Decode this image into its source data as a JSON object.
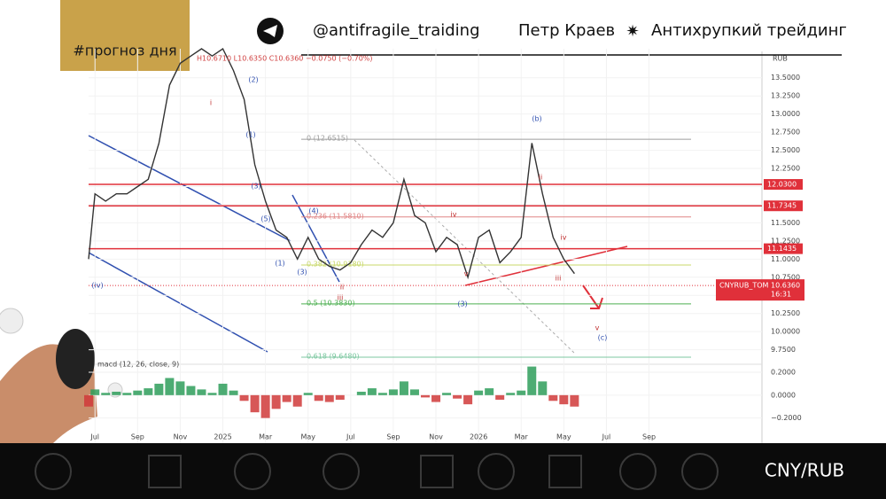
{
  "header": {
    "tag": "#прогноз дня",
    "channel": "@antifragile_traiding",
    "author": "Петр Краев",
    "brand": "Антихрупкий трейдинг"
  },
  "footer": {
    "pair": "CNY/RUB"
  },
  "chart_data": {
    "type": "line",
    "ohlc_legend": "H10.6710 L10.6350 C10.6360 −0.0750 (−0.70%)",
    "y_axis_label": "RUB",
    "xlim": [
      0.7,
      32.3
    ],
    "ylim": [
      9.55,
      13.9
    ],
    "xticks": [
      {
        "value": 1,
        "label": "Jul"
      },
      {
        "value": 3,
        "label": "Sep"
      },
      {
        "value": 5,
        "label": "Nov"
      },
      {
        "value": 7,
        "label": "2025"
      },
      {
        "value": 9,
        "label": "Mar"
      },
      {
        "value": 11,
        "label": "May"
      },
      {
        "value": 13,
        "label": "Jul"
      },
      {
        "value": 15,
        "label": "Sep"
      },
      {
        "value": 17,
        "label": "Nov"
      },
      {
        "value": 19,
        "label": "2026"
      },
      {
        "value": 21,
        "label": "Mar"
      },
      {
        "value": 23,
        "label": "May"
      },
      {
        "value": 25,
        "label": "Jul"
      },
      {
        "value": 27,
        "label": "Sep"
      }
    ],
    "yticks": [
      {
        "value": 9.75,
        "label": "9.7500"
      },
      {
        "value": 10,
        "label": "10.0000"
      },
      {
        "value": 10.25,
        "label": "10.2500"
      },
      {
        "value": 10.5,
        "label": "10.5000"
      },
      {
        "value": 10.75,
        "label": "10.7500"
      },
      {
        "value": 11,
        "label": "11.0000"
      },
      {
        "value": 11.25,
        "label": "11.2500"
      },
      {
        "value": 11.5,
        "label": "11.5000"
      },
      {
        "value": 11.75,
        "label": "11.7500"
      },
      {
        "value": 12,
        "label": "12.0000"
      },
      {
        "value": 12.25,
        "label": "12.2500"
      },
      {
        "value": 12.5,
        "label": "12.5000"
      },
      {
        "value": 12.75,
        "label": "12.7500"
      },
      {
        "value": 13,
        "label": "13.0000"
      },
      {
        "value": 13.25,
        "label": "13.2500"
      },
      {
        "value": 13.5,
        "label": "13.5000"
      }
    ],
    "x": [
      0.7,
      1,
      1.5,
      2,
      2.5,
      3,
      3.5,
      4,
      4.5,
      5,
      5.5,
      6,
      6.5,
      7,
      7.5,
      8,
      8.5,
      9,
      9.5,
      10,
      10.5,
      11,
      11.5,
      12,
      12.5,
      13,
      13.5,
      14,
      14.5,
      15,
      15.5,
      16,
      16.5,
      17,
      17.5,
      18,
      18.5,
      19,
      19.5,
      20,
      20.5,
      21,
      21.5,
      22,
      22.5,
      23,
      23.5
    ],
    "series": [
      {
        "name": "CNYRUB_TOM",
        "color": "#333333",
        "values": [
          11.0,
          11.9,
          11.8,
          11.9,
          11.9,
          12.0,
          12.1,
          12.6,
          13.4,
          13.7,
          13.8,
          13.9,
          13.8,
          13.9,
          13.6,
          13.2,
          12.3,
          11.8,
          11.4,
          11.3,
          11.0,
          11.3,
          11.0,
          10.9,
          10.85,
          10.95,
          11.2,
          11.4,
          11.3,
          11.5,
          12.1,
          11.6,
          11.5,
          11.1,
          11.3,
          11.2,
          10.75,
          11.3,
          11.4,
          10.95,
          11.1,
          11.3,
          12.6,
          11.9,
          11.3,
          11.0,
          10.8
        ]
      }
    ],
    "last_price": {
      "value": 10.636,
      "label": "10.6360",
      "time": "16:31"
    },
    "levels": [
      {
        "value": 12.03,
        "label": "12.0300",
        "color": "#e0303a"
      },
      {
        "value": 11.7345,
        "label": "11.7345",
        "color": "#e0303a"
      },
      {
        "value": 11.1435,
        "label": "11.1435",
        "color": "#e0303a"
      }
    ],
    "fib": [
      {
        "value": 12.6515,
        "label": "0 (12.6515)",
        "color": "#9e9e9e"
      },
      {
        "value": 11.581,
        "label": "0.236 (11.5810)",
        "color": "#e08585"
      },
      {
        "value": 10.918,
        "label": "0.382 (10.9180)",
        "color": "#c8d86a"
      },
      {
        "value": 10.383,
        "label": "0.5 (10.3830)",
        "color": "#4caf50"
      },
      {
        "value": 9.648,
        "label": "0.618 (9.6480)",
        "color": "#7cc7a0"
      }
    ],
    "waves": [
      "i",
      "(2)",
      "(1)",
      "(3)",
      "(4)",
      "(5)",
      "(b)",
      "ii",
      "iv",
      "iii",
      "v",
      "(c)",
      "(iv)",
      "(1)",
      "(3)",
      "iii",
      "iv",
      "(3)",
      "v",
      "ii"
    ],
    "macd": {
      "name": "macd (12, 26, close, 9)",
      "ylim": [
        -0.42,
        0.27
      ],
      "yticks": [
        {
          "value": 0.2,
          "label": "0.2000"
        },
        {
          "value": 0,
          "label": "0.0000"
        },
        {
          "value": -0.2,
          "label": "−0.2000"
        }
      ],
      "values": [
        -0.1,
        0.05,
        0.02,
        0.03,
        0.02,
        0.04,
        0.06,
        0.1,
        0.15,
        0.12,
        0.08,
        0.05,
        0.02,
        0.1,
        0.04,
        -0.05,
        -0.15,
        -0.2,
        -0.12,
        -0.06,
        -0.1,
        0.02,
        -0.05,
        -0.06,
        -0.04,
        0.0,
        0.03,
        0.06,
        0.02,
        0.05,
        0.12,
        0.05,
        -0.02,
        -0.06,
        0.02,
        -0.03,
        -0.08,
        0.04,
        0.06,
        -0.04,
        0.02,
        0.04,
        0.25,
        0.12,
        -0.05,
        -0.08,
        -0.1
      ]
    }
  }
}
